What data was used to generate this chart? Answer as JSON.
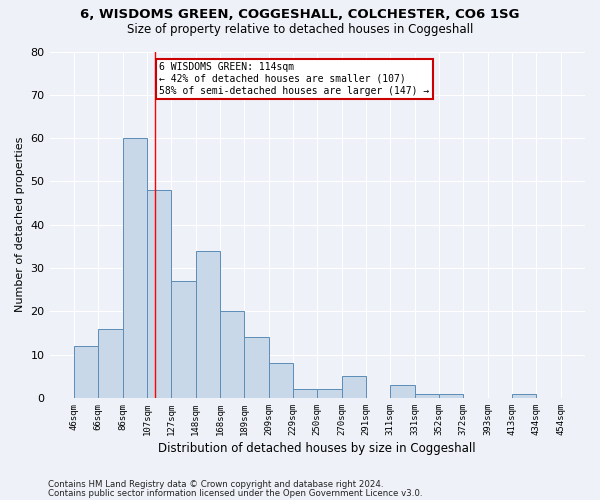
{
  "title1": "6, WISDOMS GREEN, COGGESHALL, COLCHESTER, CO6 1SG",
  "title2": "Size of property relative to detached houses in Coggeshall",
  "xlabel": "Distribution of detached houses by size in Coggeshall",
  "ylabel": "Number of detached properties",
  "bar_values": [
    12,
    16,
    60,
    48,
    27,
    34,
    20,
    14,
    8,
    2,
    2,
    5,
    0,
    3,
    1,
    1,
    0,
    0,
    1,
    0
  ],
  "bar_labels": [
    "46sqm",
    "66sqm",
    "86sqm",
    "107sqm",
    "127sqm",
    "148sqm",
    "168sqm",
    "189sqm",
    "209sqm",
    "229sqm",
    "250sqm",
    "270sqm",
    "291sqm",
    "311sqm",
    "331sqm",
    "352sqm",
    "372sqm",
    "393sqm",
    "413sqm",
    "434sqm",
    "454sqm"
  ],
  "bar_color": "#c8d8e8",
  "bar_edge_color": "#5b8db8",
  "background_color": "#eef2f8",
  "grid_color": "#ffffff",
  "annotation_text": "6 WISDOMS GREEN: 114sqm\n← 42% of detached houses are smaller (107)\n58% of semi-detached houses are larger (147) →",
  "annotation_box_color": "#ffffff",
  "annotation_box_edge": "#cc0000",
  "footnote1": "Contains HM Land Registry data © Crown copyright and database right 2024.",
  "footnote2": "Contains public sector information licensed under the Open Government Licence v3.0.",
  "ylim": [
    0,
    80
  ],
  "yticks": [
    0,
    10,
    20,
    30,
    40,
    50,
    60,
    70,
    80
  ],
  "vline_pos": 3.35
}
